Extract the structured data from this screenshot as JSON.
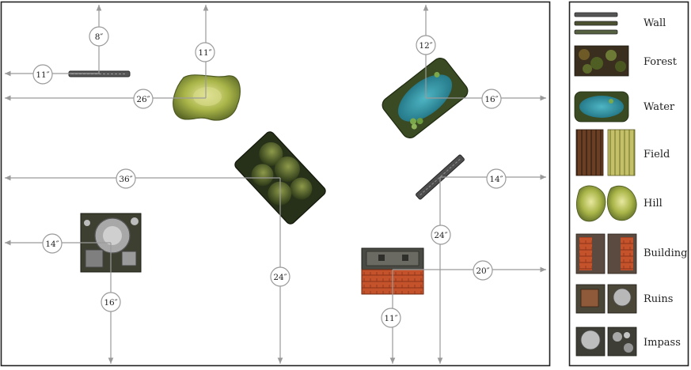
{
  "measurements": {
    "wall_top": "8″",
    "wall_left": "11″",
    "hill_top": "11″",
    "hill_left": "26″",
    "water_top": "12″",
    "water_right": "16″",
    "forest_left": "36″",
    "forest_bottom": "24″",
    "wall2_right": "14″",
    "wall2_bottom": "24″",
    "ruins_left": "14″",
    "ruins_bottom": "16″",
    "building_right": "20″",
    "building_bottom": "11″"
  },
  "legend": {
    "wall": "Wall",
    "forest": "Forest",
    "water": "Water",
    "field": "Field",
    "hill": "Hill",
    "building": "Building",
    "ruins": "Ruins",
    "impass": "Impass"
  },
  "colors": {
    "arrow": "#9a9a9a",
    "board_border": "#222222",
    "forest": "#3c4a22",
    "water": "#2f8fa0",
    "hill": "#b7bf55",
    "roof": "#c8502a",
    "stone": "#8c8c8c"
  }
}
